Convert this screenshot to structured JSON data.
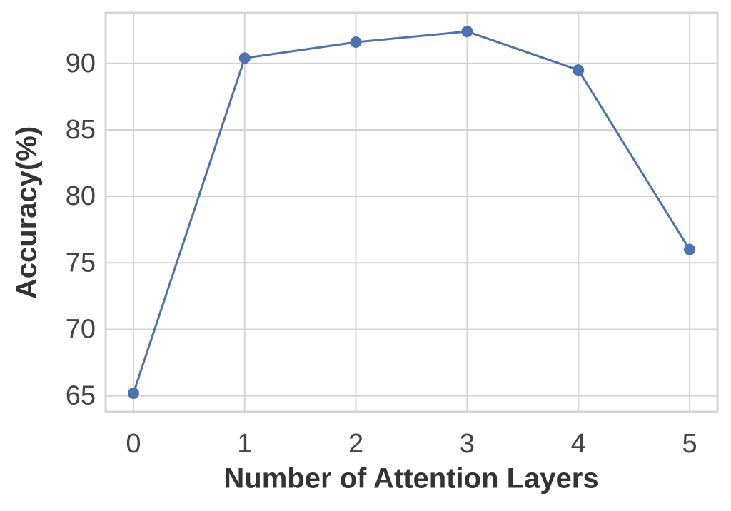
{
  "chart_data": {
    "type": "line",
    "x_label": "Number of Attention Layers",
    "y_label": "Accuracy(%)",
    "x": [
      0,
      1,
      2,
      3,
      4,
      5
    ],
    "series": [
      {
        "name": "Accuracy",
        "color": "#4c72b0",
        "values": [
          65.2,
          90.4,
          91.6,
          92.4,
          89.5,
          76.0
        ]
      }
    ],
    "xlim": [
      -0.25,
      5.25
    ],
    "xticks": [
      0,
      1,
      2,
      3,
      4,
      5
    ],
    "ylim": [
      63.8,
      93.8
    ],
    "yticks": [
      65,
      70,
      75,
      80,
      85,
      90
    ],
    "grid": true
  }
}
